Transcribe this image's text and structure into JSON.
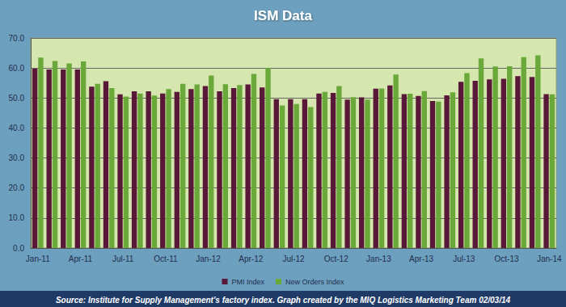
{
  "chart_data": {
    "type": "bar",
    "title": "ISM Data",
    "annotation": "Source: Institute for Supply Management's factory index. Graph created by the MIQ Logistics Marketing Team 02/03/14",
    "categories": [
      "Jan-11",
      null,
      null,
      "Apr-11",
      null,
      null,
      "Jul-11",
      null,
      null,
      "Oct-11",
      null,
      null,
      "Jan-12",
      null,
      null,
      "Apr-12",
      null,
      null,
      "Jul-12",
      null,
      null,
      "Oct-12",
      null,
      null,
      "Jan-13",
      null,
      null,
      "Apr-13",
      null,
      null,
      "Jul-13",
      null,
      null,
      "Oct-13",
      null,
      null,
      "Jan-14"
    ],
    "series": [
      {
        "name": "PMI Index",
        "color": "#5a1838",
        "values": [
          59.8,
          59.5,
          59.5,
          59.5,
          53.8,
          55.6,
          51.2,
          52.2,
          52.2,
          51.5,
          52.0,
          53.0,
          54.0,
          52.2,
          53.3,
          54.5,
          53.5,
          49.6,
          49.6,
          49.6,
          51.5,
          51.7,
          49.5,
          50.2,
          53.1,
          54.2,
          51.3,
          50.7,
          49.0,
          50.9,
          55.4,
          55.7,
          56.2,
          56.4,
          57.3,
          57.0,
          51.3
        ]
      },
      {
        "name": "New Orders Index",
        "color": "#6aa83a",
        "values": [
          63.5,
          62.3,
          61.5,
          62.2,
          54.7,
          53.3,
          50.5,
          51.5,
          50.8,
          53.0,
          54.7,
          54.5,
          57.5,
          54.6,
          54.3,
          58.0,
          60.0,
          47.5,
          48.0,
          47.0,
          52.0,
          54.0,
          50.3,
          49.5,
          53.2,
          57.8,
          51.4,
          52.3,
          48.8,
          51.9,
          58.3,
          63.2,
          60.5,
          60.6,
          63.6,
          64.2,
          51.2
        ]
      }
    ],
    "ylim": [
      0,
      70
    ],
    "yticks": [
      {
        "value": 0,
        "label": "0.0"
      },
      {
        "value": 10,
        "label": "10.0"
      },
      {
        "value": 20,
        "label": "20.0"
      },
      {
        "value": 30,
        "label": "30.0"
      },
      {
        "value": 40,
        "label": "40.0"
      },
      {
        "value": 50,
        "label": "50.0"
      },
      {
        "value": 60,
        "label": "60.0"
      },
      {
        "value": 70,
        "label": "70.0"
      }
    ],
    "grid": true,
    "legend": "bottom"
  }
}
